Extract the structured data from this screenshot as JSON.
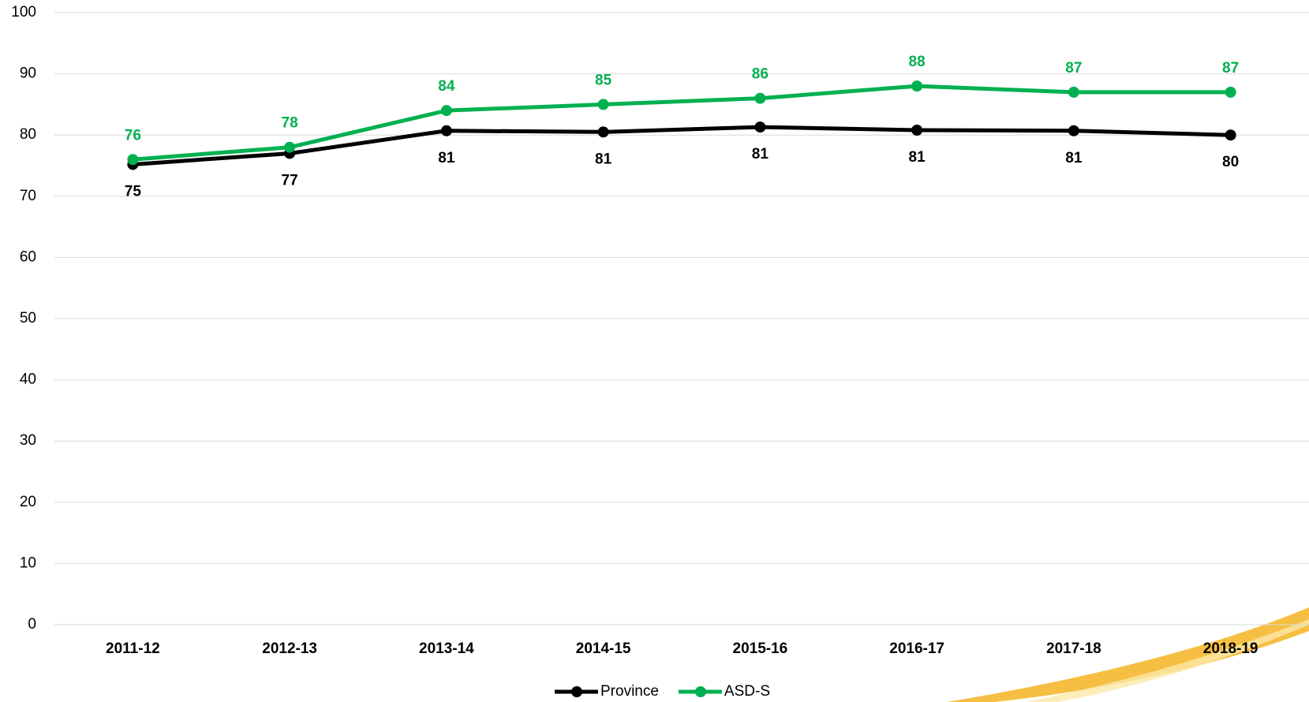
{
  "chart_data": {
    "type": "line",
    "categories": [
      "2011-12",
      "2012-13",
      "2013-14",
      "2014-15",
      "2015-16",
      "2016-17",
      "2017-18",
      "2018-19"
    ],
    "series": [
      {
        "name": "Province",
        "color": "#000000",
        "values": [
          75.2,
          77,
          80.7,
          80.5,
          81.3,
          80.8,
          80.7,
          80
        ],
        "value_labels": [
          "75",
          "77",
          "81",
          "81",
          "81",
          "81",
          "81",
          "80"
        ]
      },
      {
        "name": "ASD-S",
        "color": "#00b050",
        "values": [
          76,
          78,
          84,
          85,
          86,
          88,
          87,
          87
        ]
      }
    ],
    "ylim": [
      0,
      100
    ],
    "yticks": [
      0,
      10,
      20,
      30,
      40,
      50,
      60,
      70,
      80,
      90,
      100
    ],
    "grid": true,
    "legend": "bottom"
  }
}
